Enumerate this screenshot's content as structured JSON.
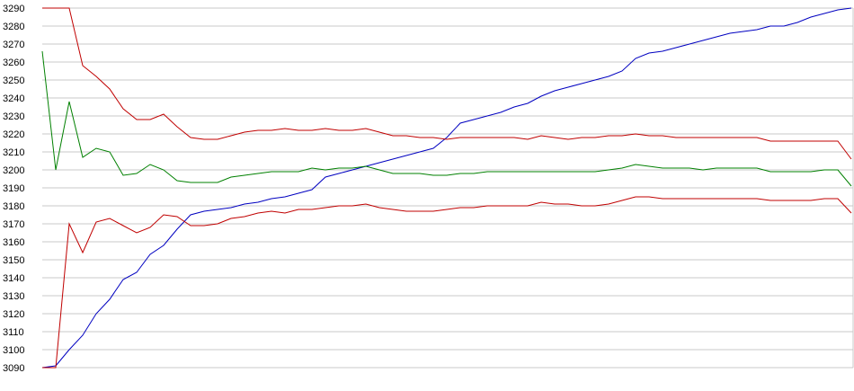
{
  "chart_data": {
    "type": "line",
    "categories": [
      null,
      null,
      null,
      null,
      null,
      null,
      null,
      null,
      null,
      null,
      null,
      null,
      null,
      null,
      null,
      null,
      null,
      null,
      null,
      null,
      null,
      null,
      null,
      null,
      null,
      null,
      null,
      null,
      null,
      null,
      null,
      null,
      null,
      null,
      null,
      null,
      null,
      null,
      null,
      null,
      null,
      null,
      null,
      null,
      null,
      null,
      null,
      null,
      null,
      null,
      null,
      null,
      null,
      null,
      null,
      null,
      null,
      null,
      null,
      null,
      null
    ],
    "series": [
      {
        "color": "#0000c0",
        "values": [
          3090,
          3091,
          3100,
          3108,
          3120,
          3128,
          3139,
          3143,
          3153,
          3158,
          3167,
          3175,
          3177,
          3178,
          3179,
          3181,
          3182,
          3184,
          3185,
          3187,
          3189,
          3196,
          3198,
          3200,
          3202,
          3204,
          3206,
          3208,
          3210,
          3212,
          3218,
          3226,
          3228,
          3230,
          3232,
          3235,
          3237,
          3241,
          3244,
          3246,
          3248,
          3250,
          3252,
          3255,
          3262,
          3265,
          3266,
          3268,
          3270,
          3272,
          3274,
          3276,
          3277,
          3278,
          3280,
          3280,
          3282,
          3285,
          3287,
          3289,
          3290
        ]
      },
      {
        "color": "#008000",
        "values": [
          3266,
          3200,
          3238,
          3207,
          3212,
          3210,
          3197,
          3198,
          3203,
          3200,
          3194,
          3193,
          3193,
          3193,
          3196,
          3197,
          3198,
          3199,
          3199,
          3199,
          3201,
          3200,
          3201,
          3201,
          3202,
          3200,
          3198,
          3198,
          3198,
          3197,
          3197,
          3198,
          3198,
          3199,
          3199,
          3199,
          3199,
          3199,
          3199,
          3199,
          3199,
          3199,
          3200,
          3201,
          3203,
          3202,
          3201,
          3201,
          3201,
          3200,
          3201,
          3201,
          3201,
          3201,
          3199,
          3199,
          3199,
          3199,
          3200,
          3200,
          3191
        ]
      },
      {
        "color": "#c00000",
        "values": [
          3290,
          3290,
          3290,
          3258,
          3252,
          3245,
          3234,
          3228,
          3228,
          3231,
          3224,
          3218,
          3217,
          3217,
          3219,
          3221,
          3222,
          3222,
          3223,
          3222,
          3222,
          3223,
          3222,
          3222,
          3223,
          3221,
          3219,
          3219,
          3218,
          3218,
          3217,
          3218,
          3218,
          3218,
          3218,
          3218,
          3217,
          3219,
          3218,
          3217,
          3218,
          3218,
          3219,
          3219,
          3220,
          3219,
          3219,
          3218,
          3218,
          3218,
          3218,
          3218,
          3218,
          3218,
          3216,
          3216,
          3216,
          3216,
          3216,
          3216,
          3206
        ]
      },
      {
        "color": "#c00000",
        "values": [
          3090,
          3090,
          3170,
          3154,
          3171,
          3173,
          3169,
          3165,
          3168,
          3175,
          3174,
          3169,
          3169,
          3170,
          3173,
          3174,
          3176,
          3177,
          3176,
          3178,
          3178,
          3179,
          3180,
          3180,
          3181,
          3179,
          3178,
          3177,
          3177,
          3177,
          3178,
          3179,
          3179,
          3180,
          3180,
          3180,
          3180,
          3182,
          3181,
          3181,
          3180,
          3180,
          3181,
          3183,
          3185,
          3185,
          3184,
          3184,
          3184,
          3184,
          3184,
          3184,
          3184,
          3184,
          3183,
          3183,
          3183,
          3183,
          3184,
          3184,
          3176
        ]
      }
    ],
    "ylim": [
      3090,
      3290
    ],
    "yticks": [
      3090,
      3100,
      3110,
      3120,
      3130,
      3140,
      3150,
      3160,
      3170,
      3180,
      3190,
      3200,
      3210,
      3220,
      3230,
      3240,
      3250,
      3260,
      3270,
      3280,
      3290
    ],
    "grid": true
  }
}
